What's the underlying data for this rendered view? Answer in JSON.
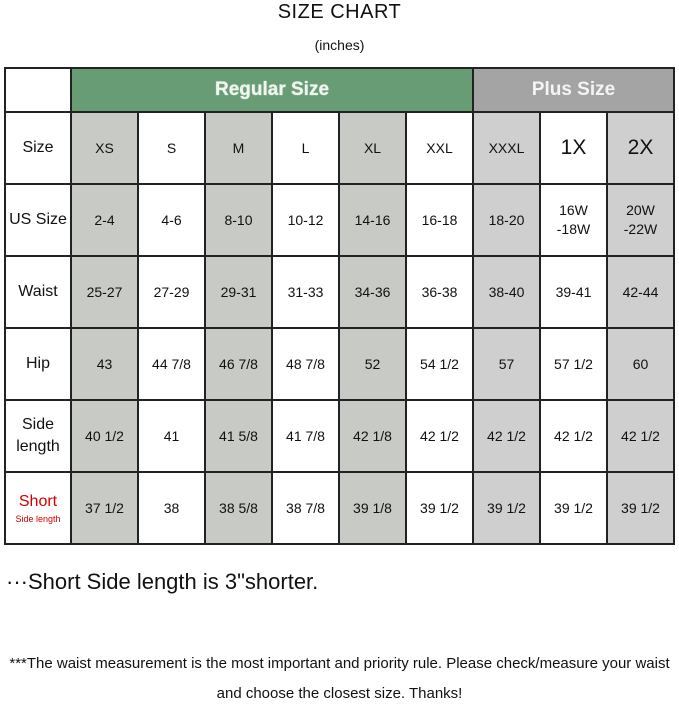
{
  "title": "SIZE CHART",
  "subtitle": "(inches)",
  "groups": {
    "regular": "Regular Size",
    "plus": "Plus Size"
  },
  "colors": {
    "regular_header": "#679c74",
    "plus_header": "#a4a4a4",
    "shaded_regular": "#c8cbc5",
    "shaded_plus": "#cfcfcf",
    "short_label": "#d10000"
  },
  "rows": [
    {
      "label": "Size",
      "values": [
        "XS",
        "S",
        "M",
        "L",
        "XL",
        "XXL",
        "XXXL",
        "1X",
        "2X"
      ]
    },
    {
      "label": "US Size",
      "values": [
        "2-4",
        "4-6",
        "8-10",
        "10-12",
        "14-16",
        "16-18",
        "18-20",
        "16W -18W",
        "20W -22W"
      ]
    },
    {
      "label": "Waist",
      "values": [
        "25-27",
        "27-29",
        "29-31",
        "31-33",
        "34-36",
        "36-38",
        "38-40",
        "39-41",
        "42-44"
      ]
    },
    {
      "label": "Hip",
      "values": [
        "43",
        "44 7/8",
        "46 7/8",
        "48 7/8",
        "52",
        "54 1/2",
        "57",
        "57 1/2",
        "60"
      ]
    },
    {
      "label": "Side length",
      "values": [
        "40 1/2",
        "41",
        "41 5/8",
        "41 7/8",
        "42 1/8",
        "42 1/2",
        "42 1/2",
        "42 1/2",
        "42 1/2"
      ]
    },
    {
      "label": "Short",
      "sublabel": "Side length",
      "values": [
        "37 1/2",
        "38",
        "38 5/8",
        "38 7/8",
        "39 1/8",
        "39 1/2",
        "39 1/2",
        "39 1/2",
        "39 1/2"
      ]
    }
  ],
  "notes": [
    "···Short Side length is  3\"shorter.",
    "***The waist measurement is the most important and priority rule. Please check/measure your waist and choose the closest size. Thanks!"
  ]
}
